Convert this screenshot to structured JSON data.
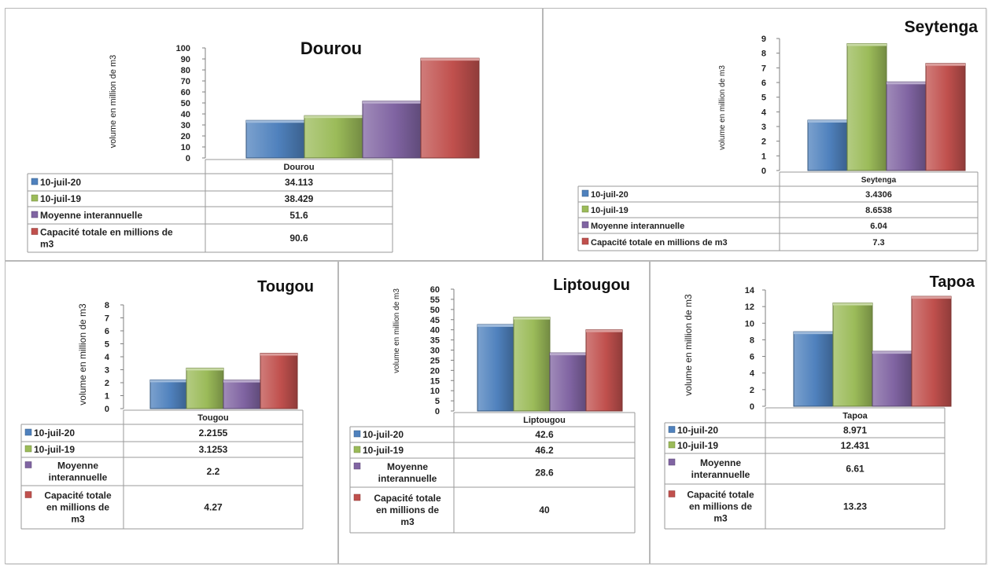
{
  "colors": {
    "blue": "#4f81bd",
    "green": "#9bbb59",
    "purple": "#8064a2",
    "red": "#c0504d"
  },
  "chart_data": [
    {
      "type": "bar",
      "title": "Dourou",
      "ylabel": "volume en million de m3",
      "categories": [
        "Dourou"
      ],
      "ylim": [
        0,
        100
      ],
      "yticks": [
        0,
        10,
        20,
        30,
        40,
        50,
        60,
        70,
        80,
        90,
        100
      ],
      "series": [
        {
          "name": "10-juil-20",
          "values": [
            34.113
          ],
          "label": "34.113"
        },
        {
          "name": "10-juil-19",
          "values": [
            38.429
          ],
          "label": "38.429"
        },
        {
          "name": "Moyenne interannuelle",
          "values": [
            51.6
          ],
          "label": "51.6"
        },
        {
          "name": "Capacité totale en millions de m3",
          "values": [
            90.6
          ],
          "label": "90.6"
        }
      ]
    },
    {
      "type": "bar",
      "title": "Seytenga",
      "ylabel": "volume en million de m3",
      "categories": [
        "Seytenga"
      ],
      "ylim": [
        0,
        9
      ],
      "yticks": [
        0,
        1,
        2,
        3,
        4,
        5,
        6,
        7,
        8,
        9
      ],
      "series": [
        {
          "name": "10-juil-20",
          "values": [
            3.4306
          ],
          "label": "3.4306"
        },
        {
          "name": "10-juil-19",
          "values": [
            8.6538
          ],
          "label": "8.6538"
        },
        {
          "name": "Moyenne interannuelle",
          "values": [
            6.04
          ],
          "label": "6.04"
        },
        {
          "name": "Capacité totale en millions de m3",
          "values": [
            7.3
          ],
          "label": "7.3"
        }
      ]
    },
    {
      "type": "bar",
      "title": "Tougou",
      "ylabel": "volume en million de m3",
      "categories": [
        "Tougou"
      ],
      "ylim": [
        0,
        8
      ],
      "yticks": [
        0,
        1,
        2,
        3,
        4,
        5,
        6,
        7,
        8
      ],
      "series": [
        {
          "name": "10-juil-20",
          "values": [
            2.2155
          ],
          "label": "2.2155"
        },
        {
          "name": "10-juil-19",
          "values": [
            3.1253
          ],
          "label": "3.1253"
        },
        {
          "name": "Moyenne interannuelle",
          "values": [
            2.2
          ],
          "label": "2.2"
        },
        {
          "name": "Capacité totale en millions de m3",
          "values": [
            4.27
          ],
          "label": "4.27"
        }
      ]
    },
    {
      "type": "bar",
      "title": "Liptougou",
      "ylabel": "volume en million de m3",
      "categories": [
        "Liptougou"
      ],
      "ylim": [
        0,
        60
      ],
      "yticks": [
        0,
        5,
        10,
        15,
        20,
        25,
        30,
        35,
        40,
        45,
        50,
        55,
        60
      ],
      "series": [
        {
          "name": "10-juil-20",
          "values": [
            42.6
          ],
          "label": "42.6"
        },
        {
          "name": "10-juil-19",
          "values": [
            46.2
          ],
          "label": "46.2"
        },
        {
          "name": "Moyenne interannuelle",
          "values": [
            28.6
          ],
          "label": "28.6"
        },
        {
          "name": "Capacité totale en millions de m3",
          "values": [
            40
          ],
          "label": "40"
        }
      ]
    },
    {
      "type": "bar",
      "title": "Tapoa",
      "ylabel": "volume en million de m3",
      "categories": [
        "Tapoa"
      ],
      "ylim": [
        0,
        14
      ],
      "yticks": [
        0,
        2,
        4,
        6,
        8,
        10,
        12,
        14
      ],
      "series": [
        {
          "name": "10-juil-20",
          "values": [
            8.971
          ],
          "label": "8.971"
        },
        {
          "name": "10-juil-19",
          "values": [
            12.431
          ],
          "label": "12.431"
        },
        {
          "name": "Moyenne interannuelle",
          "values": [
            6.61
          ],
          "label": "6.61"
        },
        {
          "name": "Capacité totale en millions de m3",
          "values": [
            13.23
          ],
          "label": "13.23"
        }
      ]
    }
  ]
}
